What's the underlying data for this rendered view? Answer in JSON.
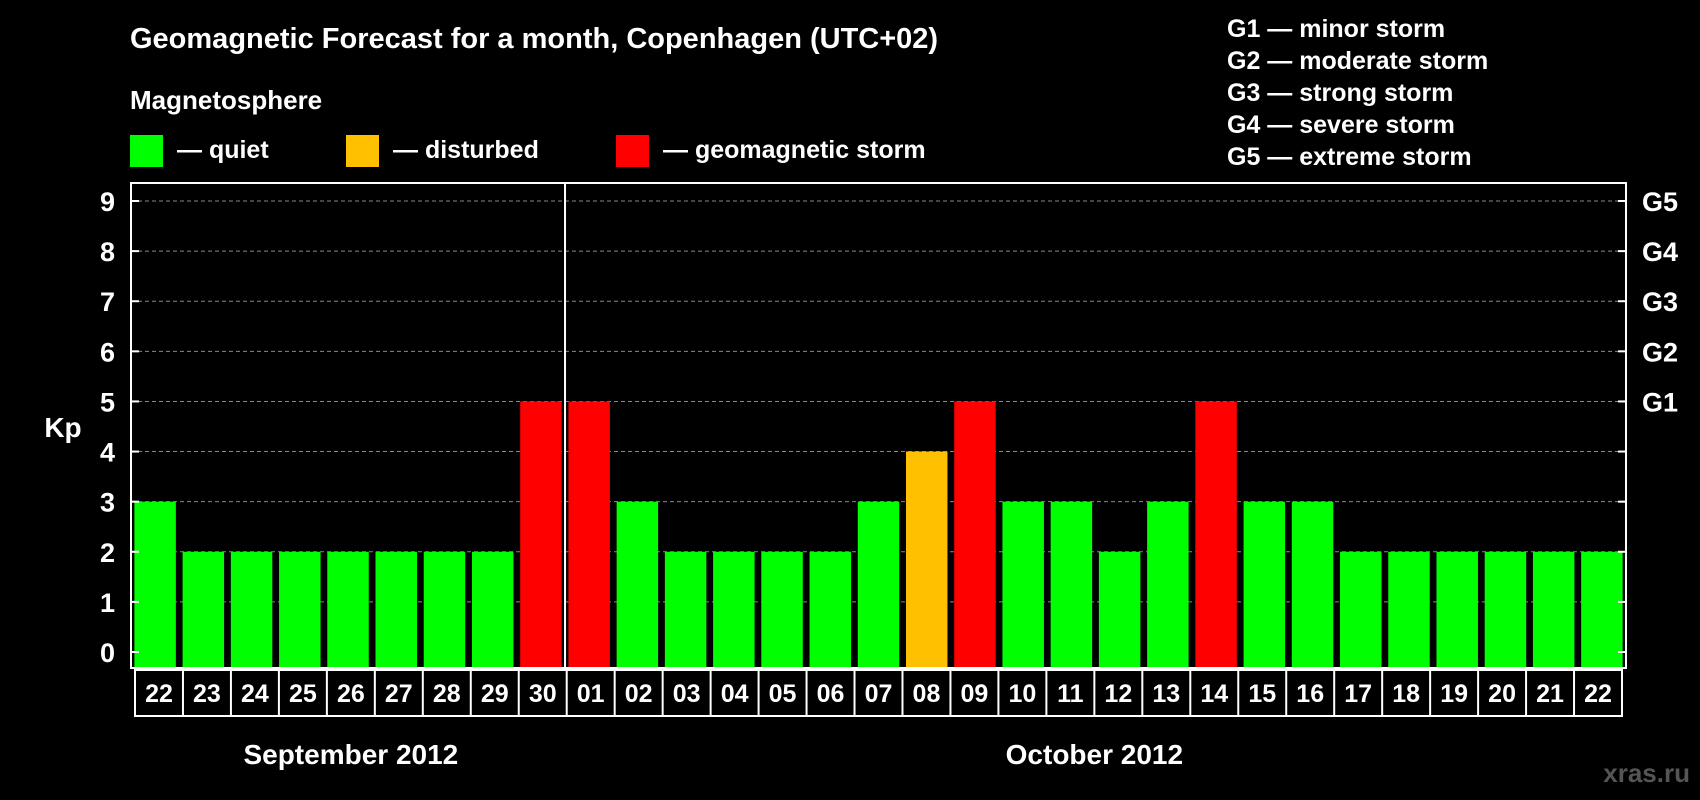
{
  "title": "Geomagnetic Forecast for a month, Copenhagen (UTC+02)",
  "legend": {
    "heading": "Magnetosphere",
    "items": [
      {
        "label": "— quiet",
        "color": "#00ff00"
      },
      {
        "label": "— disturbed",
        "color": "#ffc000"
      },
      {
        "label": "— geomagnetic storm",
        "color": "#ff0000"
      }
    ]
  },
  "storm_scale": [
    "G1 — minor storm",
    "G2 — moderate storm",
    "G3 — strong storm",
    "G4 — severe storm",
    "G5 — extreme storm"
  ],
  "watermark": "xras.ru",
  "chart_data": {
    "type": "bar",
    "ylabel": "Kp",
    "ylim": [
      0,
      9
    ],
    "yticks": [
      "0",
      "1",
      "2",
      "3",
      "4",
      "5",
      "6",
      "7",
      "8",
      "9"
    ],
    "right_axis_labels": [
      {
        "kp": 5,
        "label": "G1"
      },
      {
        "kp": 6,
        "label": "G2"
      },
      {
        "kp": 7,
        "label": "G3"
      },
      {
        "kp": 8,
        "label": "G4"
      },
      {
        "kp": 9,
        "label": "G5"
      }
    ],
    "grid": true,
    "categories": [
      "22",
      "23",
      "24",
      "25",
      "26",
      "27",
      "28",
      "29",
      "30",
      "01",
      "02",
      "03",
      "04",
      "05",
      "06",
      "07",
      "08",
      "09",
      "10",
      "11",
      "12",
      "13",
      "14",
      "15",
      "16",
      "17",
      "18",
      "19",
      "20",
      "21",
      "22"
    ],
    "values": [
      3,
      2,
      2,
      2,
      2,
      2,
      2,
      2,
      5,
      5,
      3,
      2,
      2,
      2,
      2,
      3,
      4,
      5,
      3,
      3,
      2,
      3,
      5,
      3,
      3,
      2,
      2,
      2,
      2,
      2,
      2
    ],
    "status": [
      "quiet",
      "quiet",
      "quiet",
      "quiet",
      "quiet",
      "quiet",
      "quiet",
      "quiet",
      "storm",
      "storm",
      "quiet",
      "quiet",
      "quiet",
      "quiet",
      "quiet",
      "quiet",
      "disturbed",
      "storm",
      "quiet",
      "quiet",
      "quiet",
      "quiet",
      "storm",
      "quiet",
      "quiet",
      "quiet",
      "quiet",
      "quiet",
      "quiet",
      "quiet",
      "quiet"
    ],
    "status_colors": {
      "quiet": "#00ff00",
      "disturbed": "#ffc000",
      "storm": "#ff0000"
    },
    "months": [
      {
        "label": "September 2012",
        "from": 0,
        "to": 8
      },
      {
        "label": "October 2012",
        "from": 9,
        "to": 30
      }
    ]
  }
}
